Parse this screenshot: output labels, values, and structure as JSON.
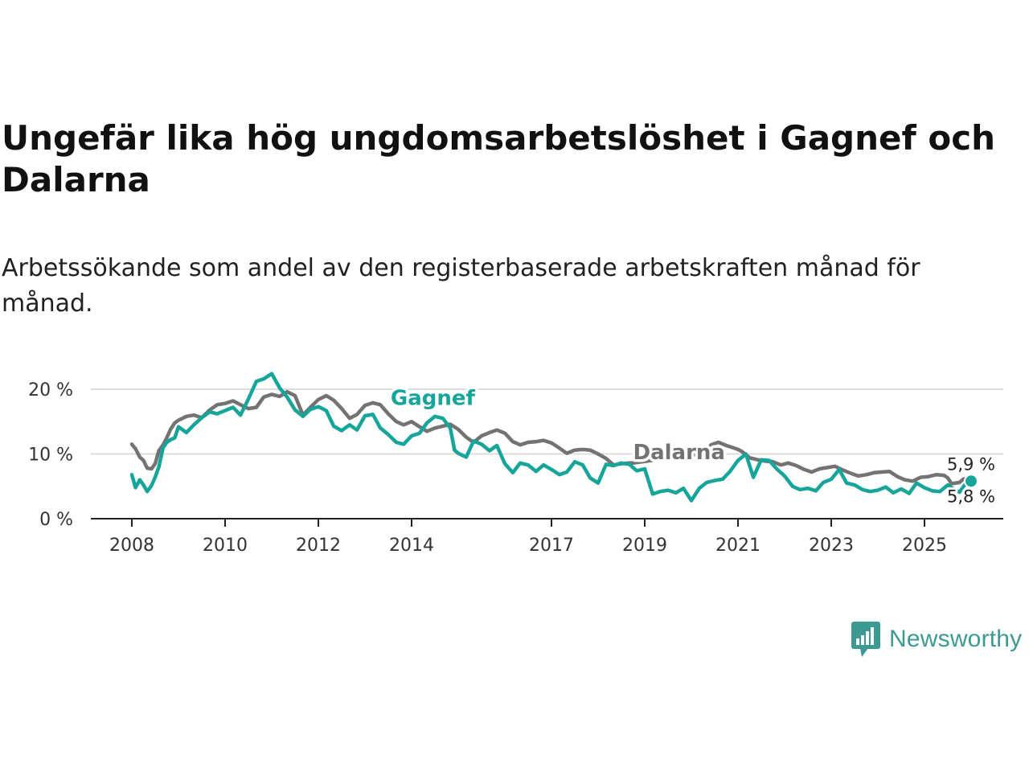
{
  "title": "Ungefär lika hög ungdomsarbetslöshet i Gagnef och Dalarna",
  "subtitle": "Arbetssökande som andel av den registerbaserade arbetskraften månad för månad.",
  "brand": {
    "name": "Newsworthy",
    "icon": "newsworthy-chart-bubble-icon"
  },
  "colors": {
    "gagnef": "#16a59a",
    "dalarna": "#737373",
    "grid": "#dcdcdc",
    "axis": "#222222"
  },
  "chart_data": {
    "type": "line",
    "xlabel": "",
    "ylabel": "",
    "xlim": [
      2008,
      2026.2
    ],
    "ylim": [
      0,
      22
    ],
    "yticks": [
      {
        "value": 0,
        "label": "0 %"
      },
      {
        "value": 10,
        "label": "10 %"
      },
      {
        "value": 20,
        "label": "20 %"
      }
    ],
    "xticks": [
      {
        "value": 2008,
        "label": "2008"
      },
      {
        "value": 2010,
        "label": "2010"
      },
      {
        "value": 2012,
        "label": "2012"
      },
      {
        "value": 2014,
        "label": "2014"
      },
      {
        "value": 2017,
        "label": "2017"
      },
      {
        "value": 2019,
        "label": "2019"
      },
      {
        "value": 2021,
        "label": "2021"
      },
      {
        "value": 2023,
        "label": "2023"
      },
      {
        "value": 2025,
        "label": "2025"
      }
    ],
    "series": [
      {
        "name": "Dalarna",
        "label": "Dalarna",
        "label_at": [
          2018.75,
          9.2
        ],
        "end_label": "5,9 %",
        "points": [
          [
            2008.0,
            11.5
          ],
          [
            2008.08,
            10.8
          ],
          [
            2008.17,
            9.5
          ],
          [
            2008.25,
            9.0
          ],
          [
            2008.33,
            7.8
          ],
          [
            2008.42,
            7.7
          ],
          [
            2008.5,
            8.5
          ],
          [
            2008.58,
            10.5
          ],
          [
            2008.67,
            11.4
          ],
          [
            2008.75,
            12.5
          ],
          [
            2008.83,
            13.8
          ],
          [
            2008.92,
            14.8
          ],
          [
            2009.0,
            15.2
          ],
          [
            2009.17,
            15.8
          ],
          [
            2009.33,
            16.0
          ],
          [
            2009.5,
            15.6
          ],
          [
            2009.67,
            16.8
          ],
          [
            2009.83,
            17.6
          ],
          [
            2010.0,
            17.8
          ],
          [
            2010.17,
            18.2
          ],
          [
            2010.33,
            17.6
          ],
          [
            2010.5,
            17.0
          ],
          [
            2010.67,
            17.2
          ],
          [
            2010.83,
            18.8
          ],
          [
            2011.0,
            19.2
          ],
          [
            2011.17,
            18.9
          ],
          [
            2011.33,
            19.6
          ],
          [
            2011.5,
            19.0
          ],
          [
            2011.67,
            16.0
          ],
          [
            2011.83,
            17.2
          ],
          [
            2012.0,
            18.4
          ],
          [
            2012.17,
            19.0
          ],
          [
            2012.33,
            18.3
          ],
          [
            2012.5,
            17.0
          ],
          [
            2012.67,
            15.5
          ],
          [
            2012.83,
            16.1
          ],
          [
            2013.0,
            17.5
          ],
          [
            2013.17,
            17.9
          ],
          [
            2013.33,
            17.6
          ],
          [
            2013.5,
            16.2
          ],
          [
            2013.67,
            15.0
          ],
          [
            2013.83,
            14.5
          ],
          [
            2014.0,
            15.0
          ],
          [
            2014.17,
            14.2
          ],
          [
            2014.33,
            13.5
          ],
          [
            2014.5,
            14.0
          ],
          [
            2014.67,
            14.3
          ],
          [
            2014.83,
            14.6
          ],
          [
            2015.0,
            13.8
          ],
          [
            2015.17,
            12.6
          ],
          [
            2015.33,
            11.8
          ],
          [
            2015.5,
            12.8
          ],
          [
            2015.67,
            13.3
          ],
          [
            2015.83,
            13.7
          ],
          [
            2016.0,
            13.2
          ],
          [
            2016.17,
            11.9
          ],
          [
            2016.33,
            11.4
          ],
          [
            2016.5,
            11.8
          ],
          [
            2016.67,
            11.9
          ],
          [
            2016.83,
            12.1
          ],
          [
            2017.0,
            11.7
          ],
          [
            2017.17,
            10.9
          ],
          [
            2017.33,
            10.1
          ],
          [
            2017.5,
            10.6
          ],
          [
            2017.67,
            10.7
          ],
          [
            2017.83,
            10.6
          ],
          [
            2018.0,
            10.0
          ],
          [
            2018.17,
            9.3
          ],
          [
            2018.33,
            8.3
          ],
          [
            2018.5,
            8.5
          ],
          [
            2018.67,
            8.6
          ],
          [
            2018.75,
            8.6
          ],
          [
            2020.33,
            10.2
          ],
          [
            2020.42,
            11.4
          ],
          [
            2020.58,
            11.8
          ],
          [
            2020.75,
            11.3
          ],
          [
            2020.92,
            10.9
          ],
          [
            2021.0,
            10.7
          ],
          [
            2021.08,
            10.4
          ],
          [
            2021.25,
            9.4
          ],
          [
            2021.42,
            9.1
          ],
          [
            2021.58,
            8.9
          ],
          [
            2021.75,
            8.8
          ],
          [
            2021.92,
            8.3
          ],
          [
            2022.08,
            8.6
          ],
          [
            2022.25,
            8.2
          ],
          [
            2022.42,
            7.6
          ],
          [
            2022.58,
            7.2
          ],
          [
            2022.75,
            7.7
          ],
          [
            2022.92,
            7.9
          ],
          [
            2023.08,
            8.1
          ],
          [
            2023.25,
            7.5
          ],
          [
            2023.42,
            7.0
          ],
          [
            2023.58,
            6.6
          ],
          [
            2023.75,
            6.8
          ],
          [
            2023.92,
            7.1
          ],
          [
            2024.08,
            7.2
          ],
          [
            2024.25,
            7.3
          ],
          [
            2024.42,
            6.5
          ],
          [
            2024.58,
            6.0
          ],
          [
            2024.75,
            5.8
          ],
          [
            2024.92,
            6.4
          ],
          [
            2025.08,
            6.5
          ],
          [
            2025.25,
            6.8
          ],
          [
            2025.42,
            6.7
          ],
          [
            2025.5,
            6.3
          ],
          [
            2025.58,
            5.4
          ],
          [
            2025.75,
            5.6
          ],
          [
            2025.83,
            6.1
          ],
          [
            2025.92,
            6.2
          ],
          [
            2026.0,
            5.9
          ]
        ]
      },
      {
        "name": "Gagnef",
        "label": "Gagnef",
        "label_at": [
          2013.55,
          17.6
        ],
        "end_label": "5,8 %",
        "points": [
          [
            2008.0,
            6.8
          ],
          [
            2008.08,
            4.8
          ],
          [
            2008.17,
            6.0
          ],
          [
            2008.25,
            5.2
          ],
          [
            2008.33,
            4.2
          ],
          [
            2008.42,
            5.1
          ],
          [
            2008.5,
            6.4
          ],
          [
            2008.58,
            8.0
          ],
          [
            2008.67,
            11.0
          ],
          [
            2008.75,
            11.8
          ],
          [
            2008.83,
            12.2
          ],
          [
            2008.92,
            12.5
          ],
          [
            2009.0,
            14.2
          ],
          [
            2009.17,
            13.3
          ],
          [
            2009.33,
            14.5
          ],
          [
            2009.5,
            15.6
          ],
          [
            2009.67,
            16.5
          ],
          [
            2009.83,
            16.2
          ],
          [
            2010.0,
            16.7
          ],
          [
            2010.17,
            17.2
          ],
          [
            2010.33,
            16.0
          ],
          [
            2010.5,
            18.5
          ],
          [
            2010.67,
            21.2
          ],
          [
            2010.83,
            21.6
          ],
          [
            2011.0,
            22.4
          ],
          [
            2011.17,
            20.2
          ],
          [
            2011.33,
            18.8
          ],
          [
            2011.5,
            16.8
          ],
          [
            2011.67,
            15.8
          ],
          [
            2011.83,
            16.9
          ],
          [
            2012.0,
            17.3
          ],
          [
            2012.17,
            16.7
          ],
          [
            2012.33,
            14.3
          ],
          [
            2012.5,
            13.6
          ],
          [
            2012.67,
            14.5
          ],
          [
            2012.83,
            13.7
          ],
          [
            2013.0,
            15.9
          ],
          [
            2013.17,
            16.1
          ],
          [
            2013.33,
            14.0
          ],
          [
            2013.5,
            13.0
          ],
          [
            2013.67,
            11.8
          ],
          [
            2013.83,
            11.5
          ],
          [
            2014.0,
            12.8
          ],
          [
            2014.17,
            13.2
          ],
          [
            2014.33,
            14.8
          ],
          [
            2014.5,
            15.8
          ],
          [
            2014.67,
            15.5
          ],
          [
            2014.83,
            14.0
          ],
          [
            2014.92,
            10.6
          ],
          [
            2015.0,
            10.1
          ],
          [
            2015.17,
            9.5
          ],
          [
            2015.33,
            12.0
          ],
          [
            2015.5,
            11.5
          ],
          [
            2015.67,
            10.5
          ],
          [
            2015.83,
            11.3
          ],
          [
            2016.0,
            8.5
          ],
          [
            2016.17,
            7.1
          ],
          [
            2016.33,
            8.6
          ],
          [
            2016.5,
            8.3
          ],
          [
            2016.67,
            7.3
          ],
          [
            2016.83,
            8.3
          ],
          [
            2017.0,
            7.6
          ],
          [
            2017.17,
            6.8
          ],
          [
            2017.33,
            7.2
          ],
          [
            2017.5,
            8.8
          ],
          [
            2017.67,
            8.3
          ],
          [
            2017.83,
            6.3
          ],
          [
            2018.0,
            5.5
          ],
          [
            2018.17,
            8.4
          ],
          [
            2018.33,
            8.2
          ],
          [
            2018.5,
            8.6
          ],
          [
            2018.67,
            8.4
          ],
          [
            2018.83,
            7.4
          ],
          [
            2019.0,
            7.7
          ],
          [
            2019.17,
            3.8
          ],
          [
            2019.33,
            4.2
          ],
          [
            2019.5,
            4.4
          ],
          [
            2019.67,
            4.0
          ],
          [
            2019.83,
            4.7
          ],
          [
            2020.0,
            2.8
          ],
          [
            2020.17,
            4.7
          ],
          [
            2020.33,
            5.6
          ],
          [
            2020.5,
            5.9
          ],
          [
            2020.67,
            6.1
          ],
          [
            2020.83,
            7.3
          ],
          [
            2021.0,
            9.0
          ],
          [
            2021.17,
            10.0
          ],
          [
            2021.33,
            6.4
          ],
          [
            2021.5,
            9.1
          ],
          [
            2021.67,
            9.0
          ],
          [
            2021.83,
            7.7
          ],
          [
            2022.0,
            6.6
          ],
          [
            2022.17,
            5.0
          ],
          [
            2022.33,
            4.5
          ],
          [
            2022.5,
            4.7
          ],
          [
            2022.67,
            4.3
          ],
          [
            2022.83,
            5.6
          ],
          [
            2023.0,
            6.1
          ],
          [
            2023.17,
            7.6
          ],
          [
            2023.33,
            5.5
          ],
          [
            2023.5,
            5.2
          ],
          [
            2023.67,
            4.5
          ],
          [
            2023.83,
            4.2
          ],
          [
            2024.0,
            4.4
          ],
          [
            2024.17,
            4.9
          ],
          [
            2024.33,
            4.0
          ],
          [
            2024.5,
            4.6
          ],
          [
            2024.67,
            3.9
          ],
          [
            2024.83,
            5.5
          ],
          [
            2025.0,
            4.8
          ],
          [
            2025.17,
            4.3
          ],
          [
            2025.33,
            4.2
          ],
          [
            2025.5,
            5.2
          ],
          [
            2025.58,
            4.8
          ],
          [
            2025.67,
            4.4
          ],
          [
            2025.75,
            4.1
          ],
          [
            2025.83,
            4.9
          ],
          [
            2025.92,
            5.7
          ],
          [
            2026.0,
            5.8
          ]
        ]
      }
    ]
  }
}
